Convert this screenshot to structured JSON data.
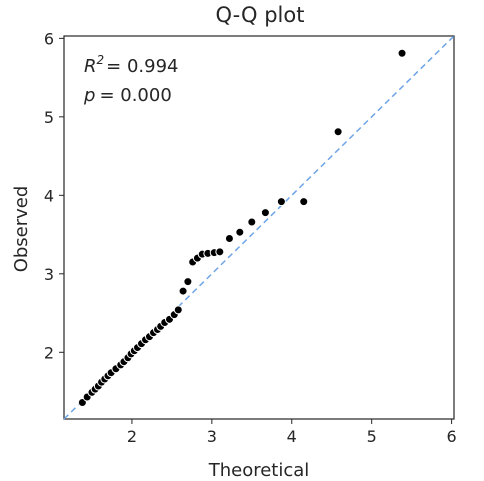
{
  "chart_data": {
    "type": "scatter",
    "title": "Q-Q plot",
    "xlabel": "Theoretical",
    "ylabel": "Observed",
    "xlim": [
      1.15,
      6.03
    ],
    "ylim": [
      1.15,
      6.03
    ],
    "xticks": [
      2,
      3,
      4,
      5,
      6
    ],
    "yticks": [
      2,
      3,
      4,
      5,
      6
    ],
    "grid": false,
    "reference_line": {
      "style": "dashed",
      "color": "#6ea4e6",
      "from": [
        1.15,
        1.15
      ],
      "to": [
        6.03,
        6.03
      ]
    },
    "annotations": {
      "r2_symbol": "R",
      "r2_exp": "2",
      "r2_value": "= 0.994",
      "p_symbol": "p",
      "p_value": "= 0.000"
    },
    "marker_color": "#000000",
    "points": [
      [
        1.38,
        1.36
      ],
      [
        1.44,
        1.43
      ],
      [
        1.5,
        1.49
      ],
      [
        1.54,
        1.53
      ],
      [
        1.58,
        1.57
      ],
      [
        1.62,
        1.62
      ],
      [
        1.66,
        1.66
      ],
      [
        1.7,
        1.7
      ],
      [
        1.74,
        1.74
      ],
      [
        1.8,
        1.79
      ],
      [
        1.86,
        1.84
      ],
      [
        1.9,
        1.88
      ],
      [
        1.95,
        1.93
      ],
      [
        1.99,
        1.98
      ],
      [
        2.03,
        2.02
      ],
      [
        2.07,
        2.06
      ],
      [
        2.12,
        2.11
      ],
      [
        2.17,
        2.16
      ],
      [
        2.22,
        2.2
      ],
      [
        2.27,
        2.25
      ],
      [
        2.32,
        2.29
      ],
      [
        2.36,
        2.33
      ],
      [
        2.41,
        2.38
      ],
      [
        2.47,
        2.42
      ],
      [
        2.53,
        2.48
      ],
      [
        2.58,
        2.54
      ],
      [
        2.64,
        2.78
      ],
      [
        2.7,
        2.9
      ],
      [
        2.76,
        3.15
      ],
      [
        2.82,
        3.2
      ],
      [
        2.88,
        3.25
      ],
      [
        2.95,
        3.26
      ],
      [
        3.03,
        3.27
      ],
      [
        3.1,
        3.28
      ],
      [
        3.22,
        3.45
      ],
      [
        3.35,
        3.53
      ],
      [
        3.5,
        3.66
      ],
      [
        3.67,
        3.78
      ],
      [
        3.87,
        3.92
      ],
      [
        4.15,
        3.92
      ],
      [
        4.58,
        4.81
      ],
      [
        5.38,
        5.81
      ]
    ]
  }
}
